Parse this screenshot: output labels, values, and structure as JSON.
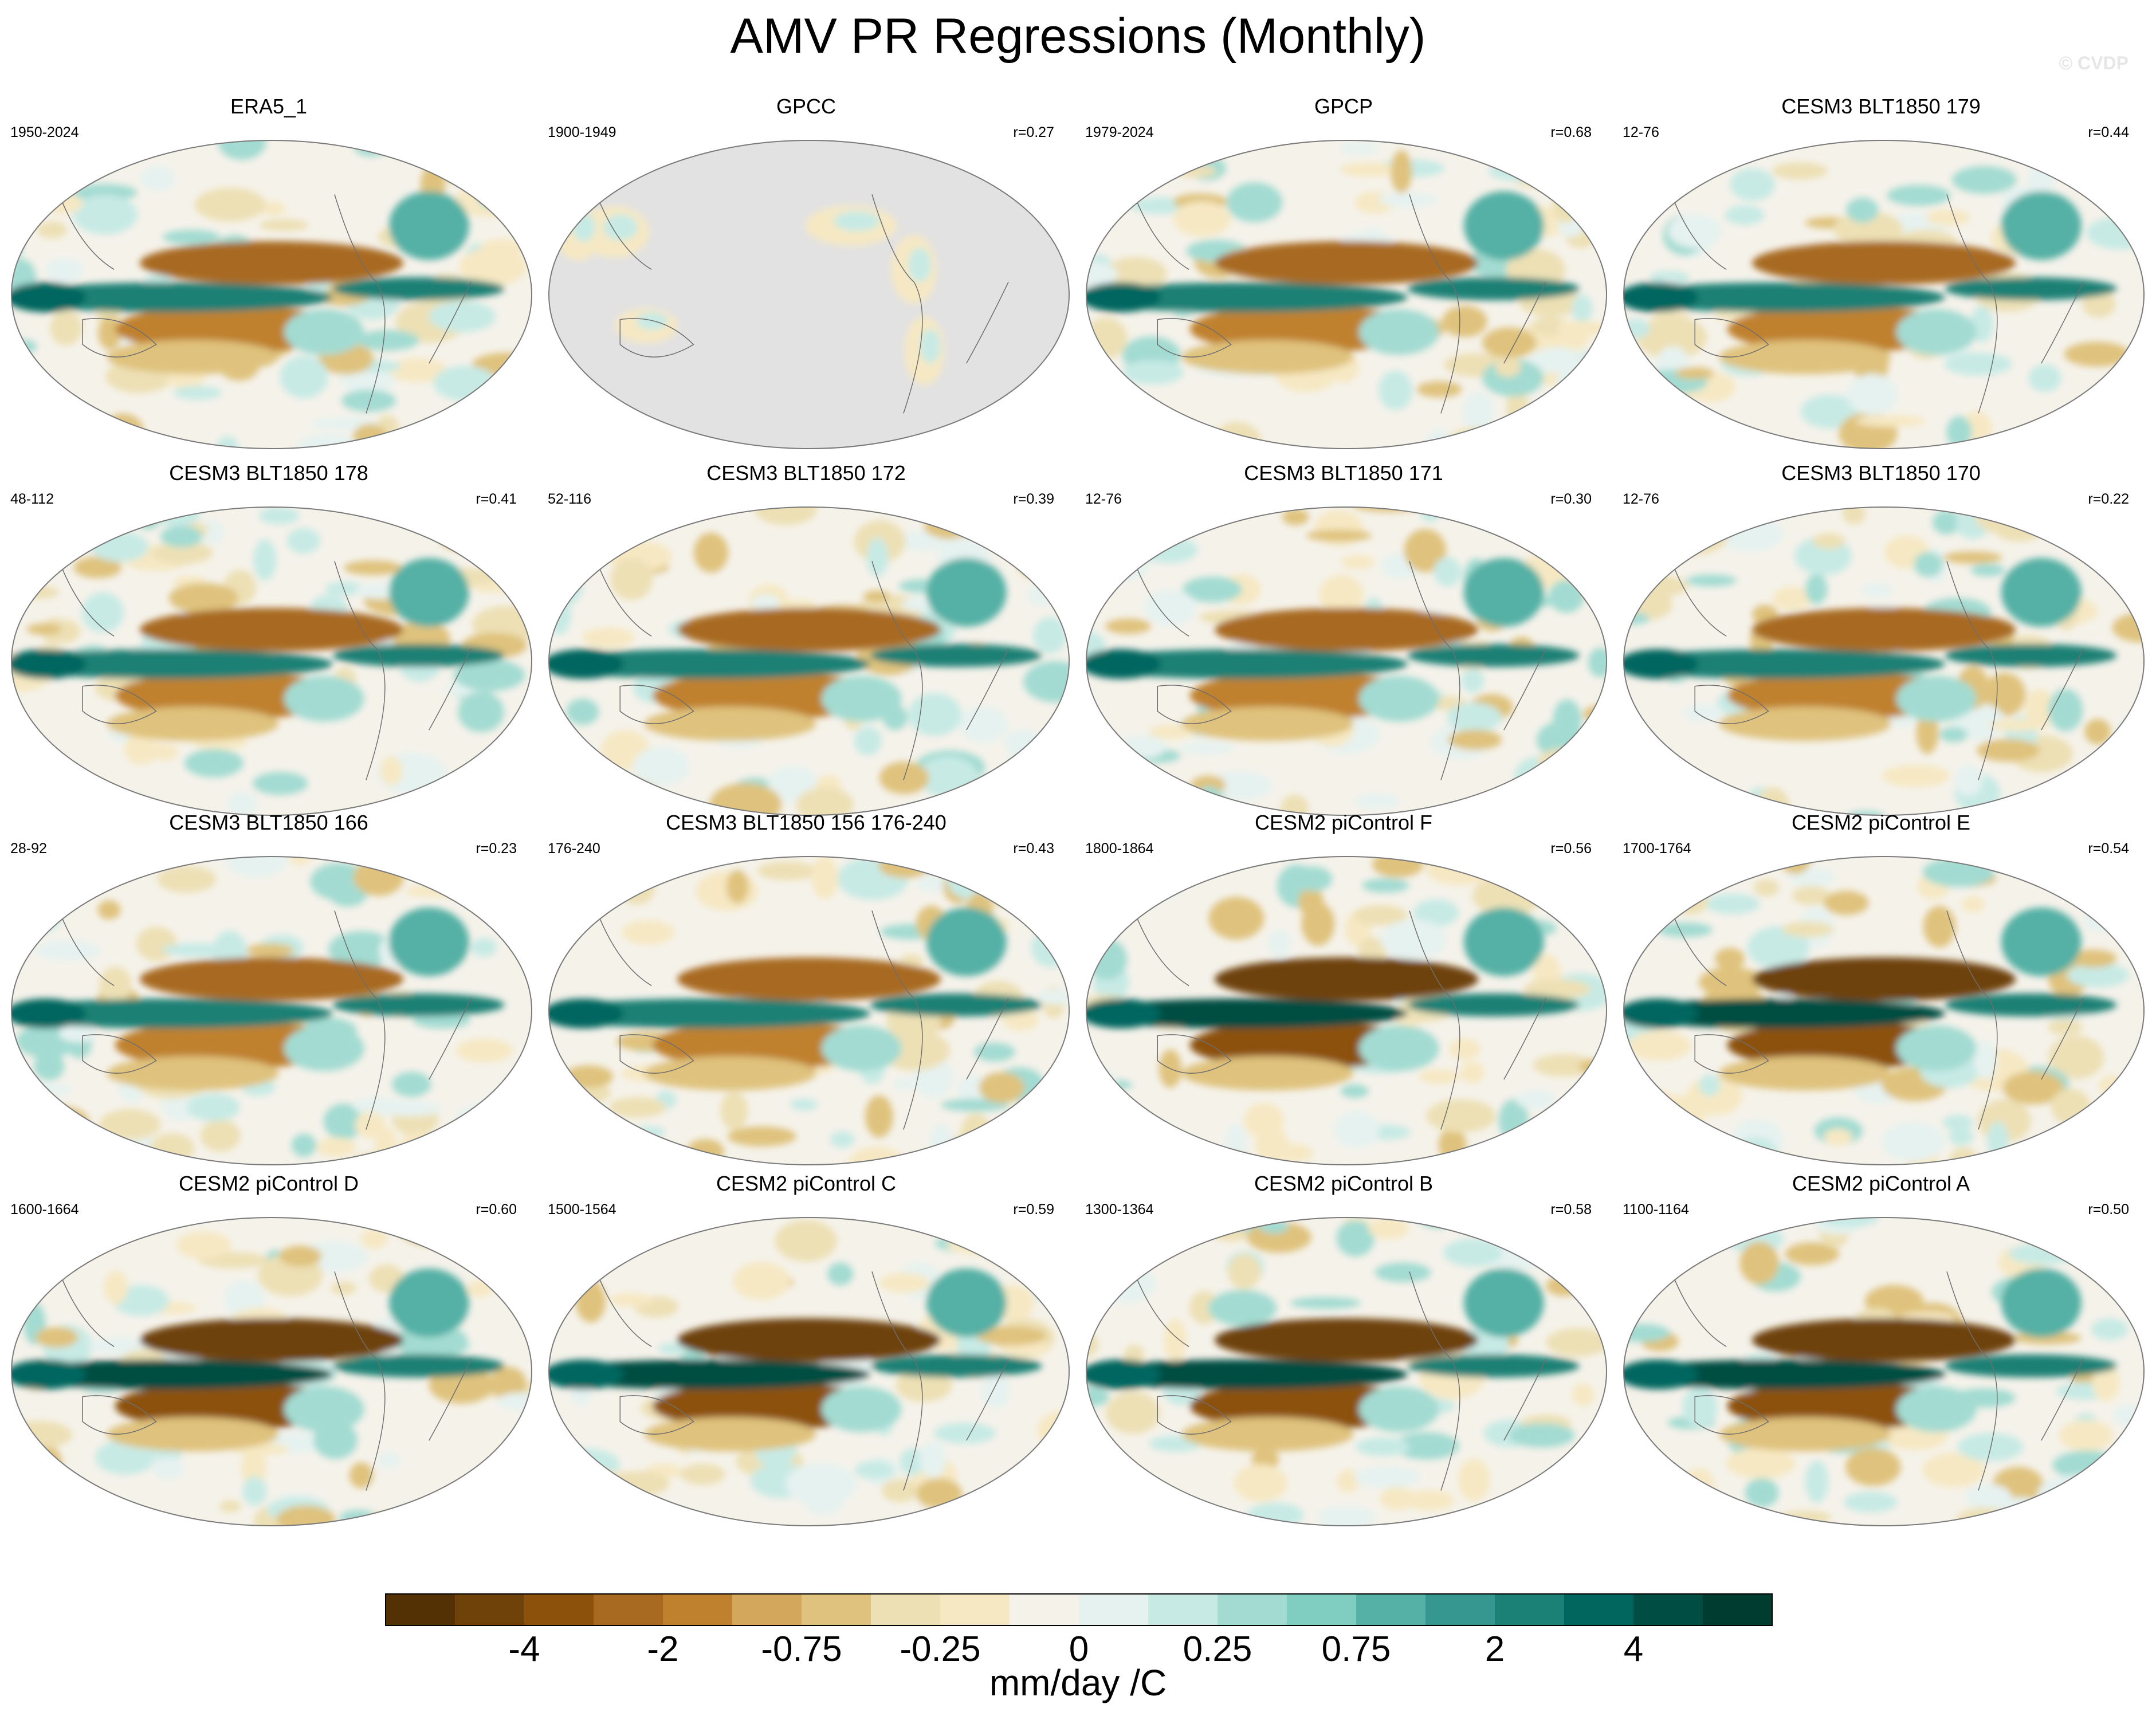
{
  "figure_title": "AMV PR Regressions (Monthly)",
  "watermark": "© CVDP",
  "colorbar": {
    "unit_label": "mm/day /C",
    "tick_labels": [
      "-4",
      "-2",
      "-0.75",
      "-0.25",
      "0",
      "0.25",
      "0.75",
      "2",
      "4"
    ],
    "colors": [
      "#543005",
      "#6e4209",
      "#8c510a",
      "#a86a20",
      "#bf812d",
      "#d4a85c",
      "#dfc27d",
      "#ede0b5",
      "#f6e8c3",
      "#f5f2ea",
      "#e6f2f0",
      "#c7eae5",
      "#a3dbd2",
      "#80cdc1",
      "#55b0a5",
      "#35978f",
      "#1b8075",
      "#01665e",
      "#004d43",
      "#003c30"
    ]
  },
  "chart_data": {
    "type": "map-grid",
    "title": "AMV PR Regressions (Monthly)",
    "units": "mm/day /C",
    "panels": [
      {
        "title": "ERA5_1",
        "years": "1950-2024",
        "r": ""
      },
      {
        "title": "GPCC",
        "years": "1900-1949",
        "r": "r=0.27"
      },
      {
        "title": "GPCP",
        "years": "1979-2024",
        "r": "r=0.68"
      },
      {
        "title": "CESM3 BLT1850 179",
        "years": "12-76",
        "r": "r=0.44"
      },
      {
        "title": "CESM3 BLT1850 178",
        "years": "48-112",
        "r": "r=0.41"
      },
      {
        "title": "CESM3 BLT1850 172",
        "years": "52-116",
        "r": "r=0.39"
      },
      {
        "title": "CESM3 BLT1850 171",
        "years": "12-76",
        "r": "r=0.30"
      },
      {
        "title": "CESM3 BLT1850 170",
        "years": "12-76",
        "r": "r=0.22"
      },
      {
        "title": "CESM3 BLT1850 166",
        "years": "28-92",
        "r": "r=0.23"
      },
      {
        "title": "CESM3 BLT1850 156 176-240",
        "years": "176-240",
        "r": "r=0.43"
      },
      {
        "title": "CESM2 piControl F",
        "years": "1800-1864",
        "r": "r=0.56"
      },
      {
        "title": "CESM2 piControl E",
        "years": "1700-1764",
        "r": "r=0.54"
      },
      {
        "title": "CESM2 piControl D",
        "years": "1600-1664",
        "r": "r=0.60"
      },
      {
        "title": "CESM2 piControl C",
        "years": "1500-1564",
        "r": "r=0.59"
      },
      {
        "title": "CESM2 piControl B",
        "years": "1300-1364",
        "r": "r=0.58"
      },
      {
        "title": "CESM2 piControl A",
        "years": "1100-1164",
        "r": "r=0.50"
      }
    ]
  }
}
